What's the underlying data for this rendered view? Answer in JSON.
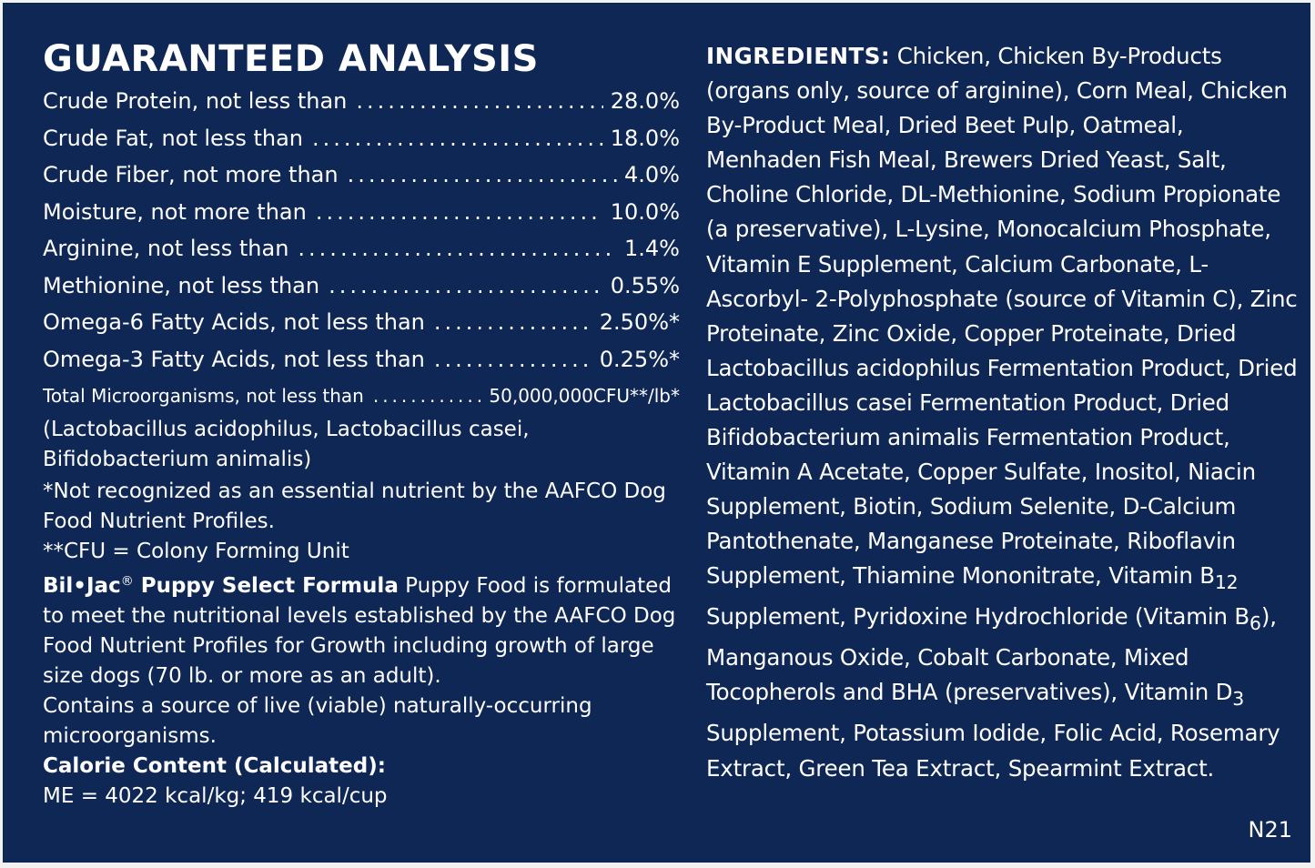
{
  "analysis": {
    "title": "GUARANTEED ANALYSIS",
    "rows": [
      {
        "label": "Crude Protein, not less than",
        "value": "28.0%"
      },
      {
        "label": "Crude Fat, not less than",
        "value": "18.0%"
      },
      {
        "label": "Crude Fiber, not more than",
        "value": "4.0%"
      },
      {
        "label": "Moisture, not more than",
        "value": "10.0%"
      },
      {
        "label": "Arginine, not less than",
        "value": "1.4%"
      },
      {
        "label": "Methionine, not less than",
        "value": "0.55%"
      },
      {
        "label": "Omega-6 Fatty Acids, not less than",
        "value": "2.50%*"
      },
      {
        "label": "Omega-3 Fatty Acids, not less than",
        "value": "0.25%*"
      },
      {
        "label": "Total Microorganisms, not less than",
        "value": "50,000,000CFU**/lb*"
      }
    ],
    "microorganisms_note": "(Lactobacillus acidophilus, Lactobacillus casei, Bifidobacterium animalis)",
    "footnote_1": "*Not recognized as an essential nutrient by the AAFCO Dog Food Nutrient Profiles.",
    "footnote_2": "**CFU = Colony Forming Unit",
    "brand": "Bil•Jac",
    "registered_mark": "®",
    "product_name": " Puppy Select Formula",
    "statement": " Puppy Food is formulated to meet the nutritional levels established by the AAFCO Dog Food Nutrient Profiles for Growth including growth of large size dogs (70 lb. or more as an adult).",
    "live_note": "Contains a source of live (viable) naturally-occurring microorganisms.",
    "calorie_heading": "Calorie Content (Calculated):",
    "calorie_value": "ME = 4022 kcal/kg; 419 kcal/cup"
  },
  "ingredients": {
    "heading": "INGREDIENTS:",
    "text_1": " Chicken, Chicken By-Products (organs only, source of arginine), Corn Meal, Chicken By-Product Meal, Dried Beet Pulp, Oatmeal, Menhaden Fish Meal, Brewers Dried Yeast, Salt, Choline Chloride, DL-Methionine, Sodium Propionate (a preservative), L-Lysine, Monocalcium Phosphate, Vitamin E Supplement, Calcium Carbonate, L-Ascorbyl- 2-Polyphosphate (source of Vitamin C), Zinc Proteinate, Zinc Oxide, Copper Proteinate, Dried Lactobacillus acidophilus Fermentation Product, Dried Lactobacillus casei Fermentation Product, Dried Bifidobacterium animalis Fermentation Product, Vitamin A Acetate, Copper Sulfate, Inositol, Niacin Supplement, Biotin, Sodium Selenite, D-Calcium Pantothenate, Manganese Proteinate, Riboflavin Supplement, Thiamine Mononitrate, Vitamin B",
    "sub_b12": "12",
    "text_2": " Supplement, Pyridoxine Hydrochloride (Vitamin B",
    "sub_b6": "6",
    "text_3": "), Manganous Oxide, Cobalt Carbonate, Mixed Tocopherols and BHA (preservatives), Vitamin D",
    "sub_d3": "3",
    "text_4": " Supplement, Potassium Iodide, Folic Acid, Rosemary Extract, Green Tea Extract, Spearmint Extract."
  },
  "code": "N21"
}
